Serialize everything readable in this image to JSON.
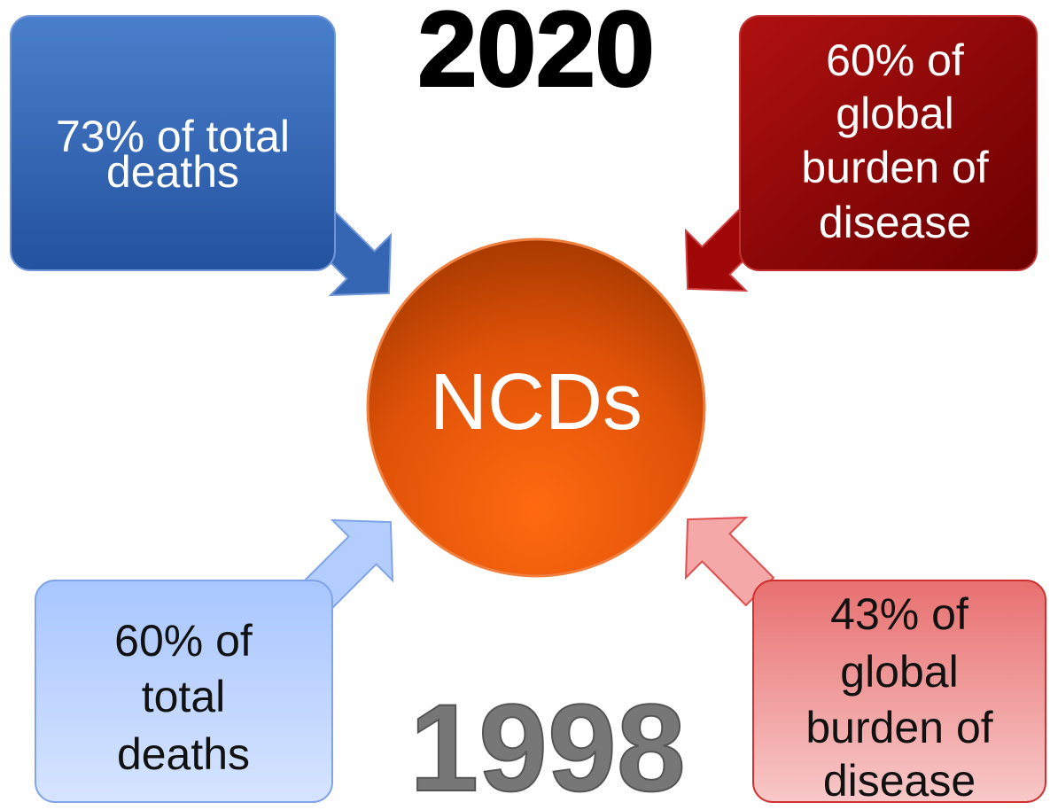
{
  "year_top": "2020",
  "year_bottom": "1998",
  "center": "NCDs",
  "boxes": [
    {
      "lines": [
        "73% of total",
        "deaths"
      ]
    },
    {
      "lines": [
        "60% of",
        "global",
        "burden of",
        "disease"
      ]
    },
    {
      "lines": [
        "60% of",
        "total",
        "deaths"
      ]
    },
    {
      "lines": [
        "43% of",
        "global",
        "burden of",
        "disease"
      ]
    }
  ]
}
